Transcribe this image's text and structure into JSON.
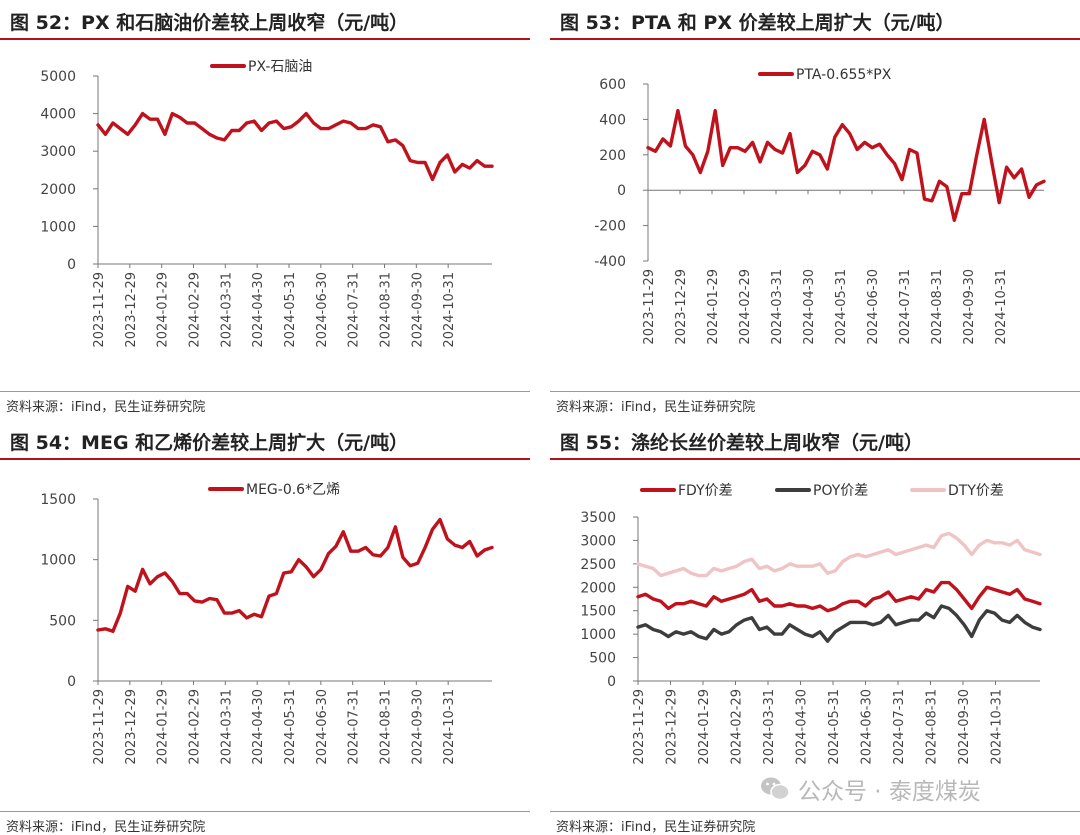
{
  "source_label": "资料来源：iFind，民生证券研究院",
  "watermark": {
    "text": "公众号 · 泰度煤炭",
    "icon": "wechat-icon"
  },
  "x_tick_labels": [
    "2023-11-29",
    "2023-12-29",
    "2024-01-29",
    "2024-02-29",
    "2024-03-31",
    "2024-04-30",
    "2024-05-31",
    "2024-06-30",
    "2024-07-31",
    "2024-08-31",
    "2024-09-30",
    "2024-10-31"
  ],
  "chart_data": [
    {
      "type": "line",
      "title": "图 52：PX 和石脑油价差较上周收窄（元/吨）",
      "ylim": [
        0,
        5000
      ],
      "yticks": [
        "0",
        "1000",
        "2000",
        "3000",
        "4000",
        "5000"
      ],
      "legend_position": "top-center",
      "series": [
        {
          "name": "PX-石脑油",
          "color": "#c0121c",
          "values": [
            3700,
            3450,
            3750,
            3600,
            3450,
            3700,
            4000,
            3850,
            3850,
            3450,
            4000,
            3900,
            3750,
            3750,
            3600,
            3450,
            3350,
            3300,
            3550,
            3550,
            3750,
            3800,
            3550,
            3750,
            3800,
            3600,
            3650,
            3800,
            4000,
            3750,
            3600,
            3600,
            3700,
            3800,
            3750,
            3600,
            3600,
            3700,
            3650,
            3250,
            3300,
            3150,
            2750,
            2700,
            2700,
            2250,
            2700,
            2900,
            2450,
            2650,
            2550,
            2750,
            2600,
            2600
          ]
        }
      ]
    },
    {
      "type": "line",
      "title": "图 53：PTA 和 PX 价差较上周扩大（元/吨）",
      "ylim": [
        -400,
        600
      ],
      "yticks": [
        "-400",
        "-200",
        "0",
        "200",
        "400",
        "600"
      ],
      "legend_position": "top-center",
      "series": [
        {
          "name": "PTA-0.655*PX",
          "color": "#c0121c",
          "values": [
            240,
            220,
            290,
            250,
            450,
            250,
            200,
            100,
            220,
            450,
            140,
            240,
            240,
            220,
            270,
            160,
            270,
            230,
            210,
            320,
            100,
            140,
            220,
            200,
            120,
            300,
            370,
            320,
            230,
            270,
            240,
            260,
            200,
            150,
            60,
            230,
            210,
            -50,
            -60,
            50,
            20,
            -170,
            -20,
            -20,
            200,
            400,
            160,
            -70,
            130,
            70,
            120,
            -40,
            30,
            50
          ]
        }
      ]
    },
    {
      "type": "line",
      "title": "图 54：MEG 和乙烯价差较上周扩大（元/吨）",
      "ylim": [
        0,
        1500
      ],
      "yticks": [
        "0",
        "500",
        "1000",
        "1500"
      ],
      "legend_position": "top-center",
      "series": [
        {
          "name": "MEG-0.6*乙烯",
          "color": "#c0121c",
          "values": [
            420,
            430,
            410,
            560,
            780,
            740,
            920,
            800,
            860,
            890,
            820,
            720,
            720,
            660,
            650,
            680,
            670,
            560,
            560,
            580,
            520,
            550,
            530,
            700,
            720,
            890,
            900,
            1000,
            940,
            860,
            920,
            1050,
            1110,
            1230,
            1070,
            1070,
            1100,
            1040,
            1030,
            1100,
            1270,
            1020,
            950,
            970,
            1100,
            1250,
            1330,
            1170,
            1120,
            1100,
            1150,
            1030,
            1080,
            1100
          ]
        }
      ]
    },
    {
      "type": "line",
      "title": "图 55：涤纶长丝价差较上周收窄（元/吨）",
      "ylim": [
        0,
        3500
      ],
      "yticks": [
        "0",
        "500",
        "1000",
        "1500",
        "2000",
        "2500",
        "3000",
        "3500"
      ],
      "legend_position": "top-center",
      "series": [
        {
          "name": "FDY价差",
          "color": "#c0121c",
          "values": [
            1800,
            1850,
            1750,
            1700,
            1550,
            1650,
            1650,
            1700,
            1650,
            1600,
            1800,
            1700,
            1750,
            1800,
            1850,
            1950,
            1700,
            1750,
            1600,
            1600,
            1650,
            1600,
            1600,
            1550,
            1600,
            1500,
            1550,
            1650,
            1700,
            1700,
            1600,
            1750,
            1800,
            1900,
            1700,
            1750,
            1800,
            1750,
            1950,
            1900,
            2100,
            2100,
            1950,
            1750,
            1550,
            1800,
            2000,
            1950,
            1900,
            1850,
            1950,
            1750,
            1700,
            1650
          ]
        },
        {
          "name": "POY价差",
          "color": "#3d3d3d",
          "values": [
            1150,
            1200,
            1100,
            1050,
            950,
            1050,
            1000,
            1050,
            950,
            900,
            1100,
            1000,
            1050,
            1200,
            1300,
            1350,
            1100,
            1150,
            1000,
            1000,
            1200,
            1100,
            1000,
            950,
            1050,
            850,
            1050,
            1150,
            1250,
            1250,
            1250,
            1200,
            1250,
            1400,
            1200,
            1250,
            1300,
            1300,
            1450,
            1350,
            1600,
            1550,
            1400,
            1200,
            950,
            1300,
            1500,
            1450,
            1300,
            1250,
            1400,
            1250,
            1150,
            1100
          ]
        },
        {
          "name": "DTY价差",
          "color": "#f0c4c4",
          "values": [
            2500,
            2450,
            2400,
            2250,
            2300,
            2350,
            2400,
            2300,
            2250,
            2250,
            2400,
            2350,
            2400,
            2450,
            2550,
            2600,
            2400,
            2450,
            2350,
            2400,
            2500,
            2450,
            2450,
            2450,
            2500,
            2300,
            2350,
            2550,
            2650,
            2700,
            2650,
            2700,
            2750,
            2800,
            2700,
            2750,
            2800,
            2850,
            2900,
            2850,
            3100,
            3150,
            3050,
            2900,
            2700,
            2900,
            3000,
            2950,
            2950,
            2900,
            3000,
            2800,
            2750,
            2700
          ]
        }
      ]
    }
  ]
}
